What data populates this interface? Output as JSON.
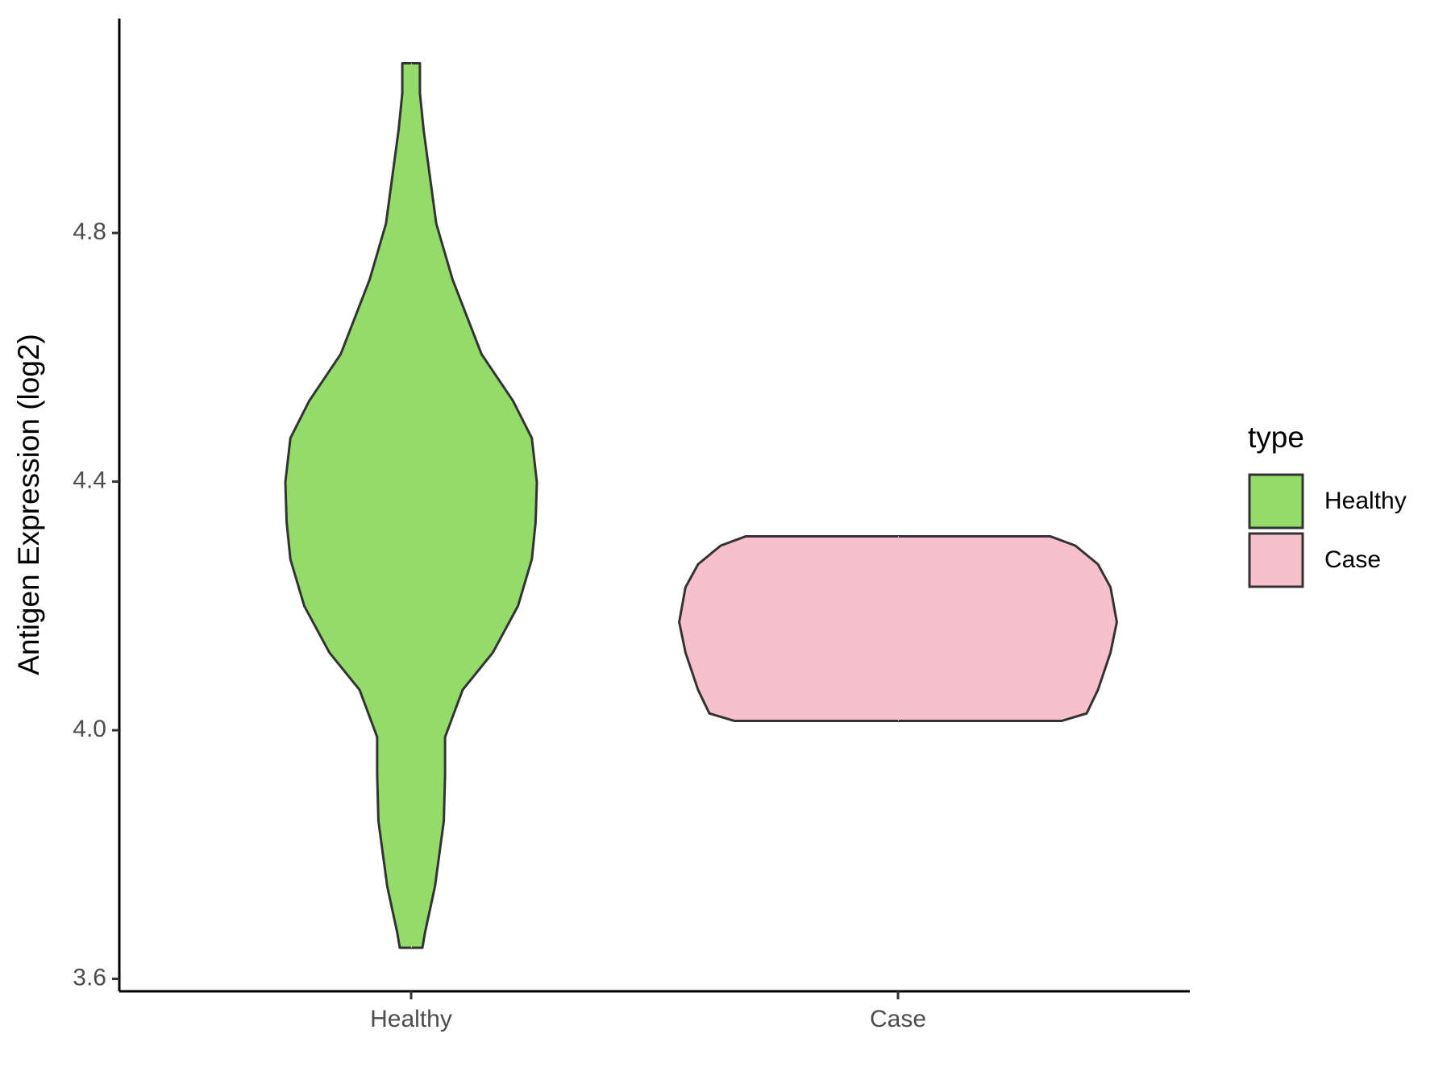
{
  "chart_data": {
    "type": "violin",
    "y_label": "Antigen Expression (log2)",
    "categories": [
      "Healthy",
      "Case"
    ],
    "series": [
      {
        "name": "Healthy",
        "color": "#93dc6a",
        "y": [
          3.65,
          3.674,
          3.749,
          3.854,
          3.929,
          3.989,
          4.065,
          4.125,
          4.2,
          4.275,
          4.335,
          4.399,
          4.47,
          4.53,
          4.605,
          4.725,
          4.815,
          4.965,
          5.025,
          5.073
        ],
        "width": [
          0.09,
          0.11,
          0.19,
          0.26,
          0.27,
          0.27,
          0.41,
          0.65,
          0.85,
          0.96,
          0.99,
          1,
          0.96,
          0.81,
          0.56,
          0.33,
          0.2,
          0.1,
          0.07,
          0.07
        ]
      },
      {
        "name": "Case",
        "color": "#f7c0cb",
        "y": [
          4.015,
          4.027,
          4.065,
          4.125,
          4.174,
          4.23,
          4.267,
          4.297,
          4.312
        ],
        "width": [
          1.3,
          1.5,
          1.59,
          1.69,
          1.74,
          1.69,
          1.59,
          1.41,
          1.21
        ]
      }
    ],
    "ylim": [
      3.58,
      5.145
    ],
    "yticks": [
      3.6,
      {
        "value": 4,
        "label": "4.0"
      },
      4.4,
      4.8
    ],
    "legend_title": "type",
    "legend": "right"
  }
}
